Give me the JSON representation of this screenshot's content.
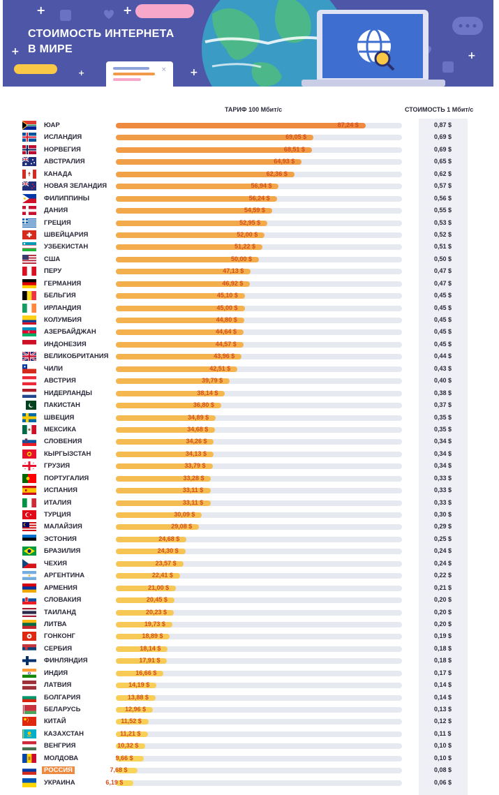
{
  "banner": {
    "title_line1": "СТОИМОСТЬ ИНТЕРНЕТА",
    "title_line2": "В МИРЕ"
  },
  "colors": {
    "banner_bg": "#4e56a8",
    "bar_high": "#ee8a3f",
    "bar_low": "#f9d55a",
    "value_text": "#d24f1f",
    "highlight": "#ee8a3f"
  },
  "chart_data": {
    "type": "bar",
    "orientation": "horizontal",
    "title": "",
    "xlabel": "ТАРИФ 100 Мбит/с",
    "secondary_label": "СТОИМОСТЬ 1 Мбит/с",
    "xlim": [
      0,
      100
    ],
    "highlighted_category": "РОССИЯ",
    "categories": [
      "ЮАР",
      "ИСЛАНДИЯ",
      "НОРВЕГИЯ",
      "АВСТРАЛИЯ",
      "КАНАДА",
      "НОВАЯ ЗЕЛАНДИЯ",
      "ФИЛИППИНЫ",
      "ДАНИЯ",
      "ГРЕЦИЯ",
      "ШВЕЙЦАРИЯ",
      "УЗБЕКИСТАН",
      "США",
      "ПЕРУ",
      "ГЕРМАНИЯ",
      "БЕЛЬГИЯ",
      "ИРЛАНДИЯ",
      "КОЛУМБИЯ",
      "АЗЕРБАЙДЖАН",
      "ИНДОНЕЗИЯ",
      "ВЕЛИКОБРИТАНИЯ",
      "ЧИЛИ",
      "АВСТРИЯ",
      "НИДЕРЛАНДЫ",
      "ПАКИСТАН",
      "ШВЕЦИЯ",
      "МЕКСИКА",
      "СЛОВЕНИЯ",
      "КЫРГЫЗСТАН",
      "ГРУЗИЯ",
      "ПОРТУГАЛИЯ",
      "ИСПАНИЯ",
      "ИТАЛИЯ",
      "ТУРЦИЯ",
      "МАЛАЙЗИЯ",
      "ЭСТОНИЯ",
      "БРАЗИЛИЯ",
      "ЧЕХИЯ",
      "АРГЕНТИНА",
      "АРМЕНИЯ",
      "СЛОВАКИЯ",
      "ТАИЛАНД",
      "ЛИТВА",
      "ГОНКОНГ",
      "СЕРБИЯ",
      "ФИНЛЯНДИЯ",
      "ИНДИЯ",
      "ЛАТВИЯ",
      "БОЛГАРИЯ",
      "БЕЛАРУСЬ",
      "КИТАЙ",
      "КАЗАХСТАН",
      "ВЕНГРИЯ",
      "МОЛДОВА",
      "РОССИЯ",
      "УКРАИНА"
    ],
    "flags": [
      "za",
      "is",
      "no",
      "au",
      "ca",
      "nz",
      "ph",
      "dk",
      "gr",
      "ch",
      "uz",
      "us",
      "pe",
      "de",
      "be",
      "ie",
      "co",
      "az",
      "id",
      "gb",
      "cl",
      "at",
      "nl",
      "pk",
      "se",
      "mx",
      "si",
      "kg",
      "ge",
      "pt",
      "es",
      "it",
      "tr",
      "my",
      "ee",
      "br",
      "cz",
      "ar",
      "am",
      "sk",
      "th",
      "lt",
      "hk",
      "rs",
      "fi",
      "in",
      "lv",
      "bg",
      "by",
      "cn",
      "kz",
      "hu",
      "md",
      "ru",
      "ua"
    ],
    "series": [
      {
        "name": "ТАРИФ 100 Мбит/с",
        "values": [
          87.24,
          69.05,
          68.51,
          64.93,
          62.36,
          56.94,
          56.24,
          54.59,
          52.95,
          52.0,
          51.22,
          50.0,
          47.13,
          46.92,
          45.1,
          45.0,
          44.8,
          44.64,
          44.57,
          43.96,
          42.51,
          39.79,
          38.14,
          36.8,
          34.89,
          34.68,
          34.26,
          34.13,
          33.79,
          33.28,
          33.11,
          33.11,
          30.09,
          29.08,
          24.68,
          24.3,
          23.57,
          22.41,
          21.0,
          20.45,
          20.23,
          19.73,
          18.89,
          18.14,
          17.91,
          16.66,
          14.19,
          13.88,
          12.96,
          11.52,
          11.21,
          10.32,
          9.66,
          7.68,
          6.19
        ],
        "labels": [
          "87,24 $",
          "69,05 $",
          "68,51 $",
          "64,93 $",
          "62,36 $",
          "56,94 $",
          "56,24 $",
          "54,59 $",
          "52,95 $",
          "52,00 $",
          "51,22 $",
          "50,00 $",
          "47,13 $",
          "46,92 $",
          "45,10 $",
          "45,00 $",
          "44,80 $",
          "44,64 $",
          "44,57 $",
          "43,96 $",
          "42,51 $",
          "39,79 $",
          "38,14 $",
          "36,80 $",
          "34,89 $",
          "34,68 $",
          "34,26 $",
          "34,13 $",
          "33,79 $",
          "33,28 $",
          "33,11 $",
          "33,11 $",
          "30,09 $",
          "29,08 $",
          "24,68 $",
          "24,30 $",
          "23,57 $",
          "22,41 $",
          "21,00 $",
          "20,45 $",
          "20,23 $",
          "19,73 $",
          "18,89 $",
          "18,14 $",
          "17,91 $",
          "16,66 $",
          "14,19 $",
          "13,88 $",
          "12,96 $",
          "11,52 $",
          "11,21 $",
          "10,32 $",
          "9,66 $",
          "7,68 $",
          "6,19 $"
        ]
      },
      {
        "name": "СТОИМОСТЬ 1 Мбит/с",
        "values": [
          0.87,
          0.69,
          0.69,
          0.65,
          0.62,
          0.57,
          0.56,
          0.55,
          0.53,
          0.52,
          0.51,
          0.5,
          0.47,
          0.47,
          0.45,
          0.45,
          0.45,
          0.45,
          0.45,
          0.44,
          0.43,
          0.4,
          0.38,
          0.37,
          0.35,
          0.35,
          0.34,
          0.34,
          0.34,
          0.33,
          0.33,
          0.33,
          0.3,
          0.29,
          0.25,
          0.24,
          0.24,
          0.22,
          0.21,
          0.2,
          0.2,
          0.2,
          0.19,
          0.18,
          0.18,
          0.17,
          0.14,
          0.14,
          0.13,
          0.12,
          0.11,
          0.1,
          0.1,
          0.08,
          0.06
        ],
        "labels": [
          "0,87 $",
          "0,69 $",
          "0,69 $",
          "0,65 $",
          "0,62 $",
          "0,57 $",
          "0,56 $",
          "0,55 $",
          "0,53 $",
          "0,52 $",
          "0,51 $",
          "0,50 $",
          "0,47 $",
          "0,47 $",
          "0,45 $",
          "0,45 $",
          "0,45 $",
          "0,45 $",
          "0,45 $",
          "0,44 $",
          "0,43 $",
          "0,40 $",
          "0,38 $",
          "0,37 $",
          "0,35 $",
          "0,35 $",
          "0,34 $",
          "0,34 $",
          "0,34 $",
          "0,33 $",
          "0,33 $",
          "0,33 $",
          "0,30 $",
          "0,29 $",
          "0,25 $",
          "0,24 $",
          "0,24 $",
          "0,22 $",
          "0,21 $",
          "0,20 $",
          "0,20 $",
          "0,20 $",
          "0,19 $",
          "0,18 $",
          "0,18 $",
          "0,17 $",
          "0,14 $",
          "0,14 $",
          "0,13 $",
          "0,12 $",
          "0,11 $",
          "0,10 $",
          "0,10 $",
          "0,08 $",
          "0,06 $"
        ]
      }
    ]
  }
}
